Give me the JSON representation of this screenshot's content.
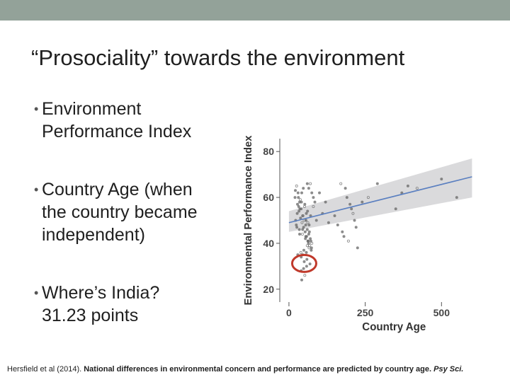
{
  "slide": {
    "title": "“Prosociality” towards the environment",
    "bullets": [
      "Environment\nPerformance Index",
      "Country Age (when\nthe country became\nindependent)",
      "Where’s India?\n31.23 points"
    ],
    "citation": {
      "authors": "Hersfield et al (2014). ",
      "article": "National differences in environmental concern and performance are predicted by country age. ",
      "journal": "Psy Sci."
    }
  },
  "colors": {
    "top_bar": "#93a299",
    "trend_line": "#5a7fc0",
    "confidence_band": "#d4d4d6",
    "highlight_circle": "#c0392b",
    "points": "#666666"
  },
  "chart_data": {
    "type": "scatter",
    "xlabel": "Country Age",
    "ylabel": "Environmental Performance Index",
    "xlim": [
      -30,
      620
    ],
    "ylim": [
      15,
      85
    ],
    "x_ticks": [
      0,
      250,
      500
    ],
    "y_ticks": [
      20,
      40,
      60,
      80
    ],
    "grid": false,
    "trend": {
      "x": [
        0,
        600
      ],
      "y": [
        49,
        69
      ],
      "ci_low": [
        45,
        60
      ],
      "ci_high": [
        54,
        77
      ]
    },
    "highlight": {
      "x": 50,
      "y": 31.23,
      "label": "India"
    },
    "points": {
      "x": [
        25,
        30,
        35,
        40,
        45,
        50,
        55,
        60,
        65,
        70,
        75,
        20,
        28,
        33,
        38,
        43,
        48,
        53,
        58,
        63,
        68,
        73,
        22,
        27,
        32,
        37,
        42,
        47,
        52,
        57,
        62,
        67,
        72,
        24,
        34,
        44,
        54,
        64,
        74,
        29,
        39,
        49,
        59,
        69,
        36,
        46,
        56,
        66,
        31,
        41,
        51,
        61,
        71,
        26,
        40,
        52,
        21,
        35,
        60,
        45,
        170,
        185,
        190,
        200,
        205,
        210,
        215,
        220,
        175,
        180,
        195,
        225,
        150,
        160,
        240,
        260,
        290,
        370,
        390,
        350,
        420,
        500,
        550,
        100,
        120,
        80,
        90,
        110,
        130,
        65,
        70,
        75,
        80,
        85,
        55,
        60,
        45,
        40,
        50,
        58,
        66,
        62,
        57,
        48,
        42
      ],
      "y": [
        65,
        62,
        58,
        55,
        52,
        50,
        48,
        46,
        44,
        42,
        40,
        60,
        57,
        54,
        51,
        49,
        47,
        45,
        43,
        41,
        39,
        37,
        50,
        53,
        56,
        59,
        62,
        64,
        57,
        53,
        49,
        45,
        41,
        48,
        46,
        44,
        42,
        40,
        38,
        35,
        36,
        37,
        33,
        31,
        55,
        52,
        50,
        48,
        60,
        58,
        56,
        54,
        52,
        47,
        28,
        26,
        63,
        44,
        66,
        46,
        66,
        64,
        60,
        57,
        55,
        53,
        50,
        47,
        45,
        43,
        41,
        38,
        52,
        48,
        58,
        60,
        66,
        62,
        65,
        55,
        64,
        68,
        60,
        62,
        58,
        56,
        50,
        53,
        49,
        64,
        66,
        62,
        60,
        58,
        43,
        39,
        35,
        34,
        32,
        30,
        38,
        41,
        36,
        29,
        24
      ]
    }
  }
}
